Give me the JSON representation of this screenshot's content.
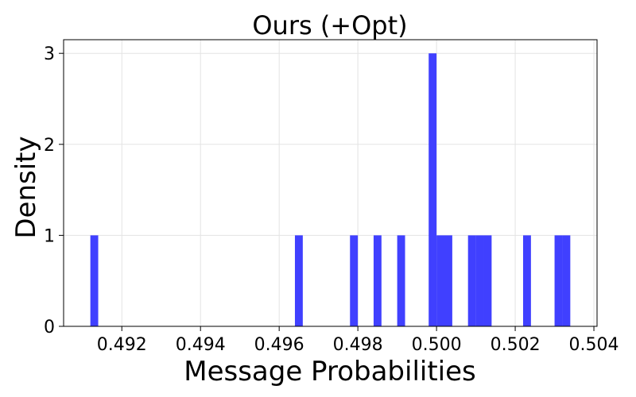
{
  "chart_data": {
    "type": "bar",
    "title": "Ours (+Opt)",
    "xlabel": "Message Probabilities",
    "ylabel": "Density",
    "xlim": [
      0.49052,
      0.50408
    ],
    "ylim": [
      0,
      3.15
    ],
    "xticks": [
      0.492,
      0.494,
      0.496,
      0.498,
      0.5,
      0.502,
      0.504
    ],
    "xtick_labels": [
      "0.492",
      "0.494",
      "0.496",
      "0.498",
      "0.500",
      "0.502",
      "0.504"
    ],
    "yticks": [
      0,
      1,
      2,
      3
    ],
    "ytick_labels": [
      "0",
      "1",
      "2",
      "3"
    ],
    "grid": true,
    "bar_color": "#4040ff",
    "bins": [
      {
        "x0": 0.4912,
        "x1": 0.4914,
        "value": 1
      },
      {
        "x0": 0.4964,
        "x1": 0.4966,
        "value": 1
      },
      {
        "x0": 0.4978,
        "x1": 0.498,
        "value": 1
      },
      {
        "x0": 0.4984,
        "x1": 0.4986,
        "value": 1
      },
      {
        "x0": 0.499,
        "x1": 0.4992,
        "value": 1
      },
      {
        "x0": 0.4998,
        "x1": 0.5,
        "value": 3
      },
      {
        "x0": 0.5,
        "x1": 0.5002,
        "value": 1
      },
      {
        "x0": 0.5002,
        "x1": 0.5004,
        "value": 1
      },
      {
        "x0": 0.5008,
        "x1": 0.501,
        "value": 1
      },
      {
        "x0": 0.501,
        "x1": 0.5012,
        "value": 1
      },
      {
        "x0": 0.5012,
        "x1": 0.5014,
        "value": 1
      },
      {
        "x0": 0.5022,
        "x1": 0.5024,
        "value": 1
      },
      {
        "x0": 0.503,
        "x1": 0.5032,
        "value": 1
      },
      {
        "x0": 0.5032,
        "x1": 0.5034,
        "value": 1
      }
    ]
  }
}
